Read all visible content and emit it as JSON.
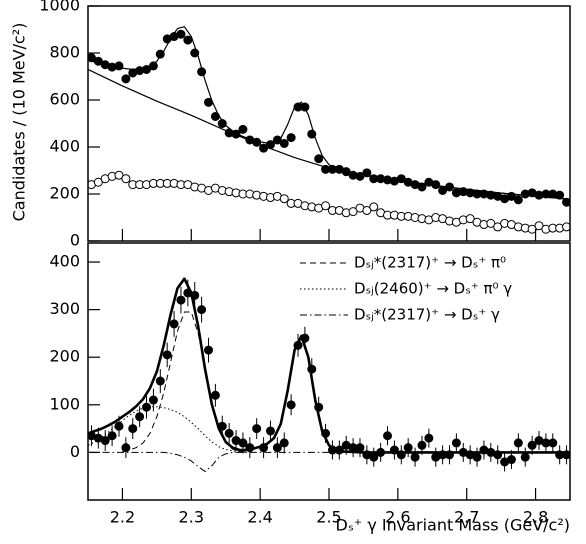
{
  "chart_data": [
    {
      "type": "scatter",
      "ylabel": "Candidates / (10 MeV/c²)",
      "xlim": [
        2.15,
        2.85
      ],
      "xticks": [
        2.2,
        2.3,
        2.4,
        2.5,
        2.6,
        2.7,
        2.8
      ],
      "show_xtick_labels": false,
      "ylim": [
        0,
        1000
      ],
      "yticks": [
        0,
        200,
        400,
        600,
        800,
        1000
      ],
      "x": [
        2.155,
        2.165,
        2.175,
        2.185,
        2.195,
        2.205,
        2.215,
        2.225,
        2.235,
        2.245,
        2.255,
        2.265,
        2.275,
        2.285,
        2.295,
        2.305,
        2.315,
        2.325,
        2.335,
        2.345,
        2.355,
        2.365,
        2.375,
        2.385,
        2.395,
        2.405,
        2.415,
        2.425,
        2.435,
        2.445,
        2.455,
        2.465,
        2.475,
        2.485,
        2.495,
        2.505,
        2.515,
        2.525,
        2.535,
        2.545,
        2.555,
        2.565,
        2.575,
        2.585,
        2.595,
        2.605,
        2.615,
        2.625,
        2.635,
        2.645,
        2.655,
        2.665,
        2.675,
        2.685,
        2.695,
        2.705,
        2.715,
        2.725,
        2.735,
        2.745,
        2.755,
        2.765,
        2.775,
        2.785,
        2.795,
        2.805,
        2.815,
        2.825,
        2.835,
        2.845
      ],
      "series": [
        {
          "mode": "markers",
          "marker": "filled",
          "color": "#000000",
          "values": [
            780,
            765,
            750,
            740,
            745,
            690,
            715,
            725,
            730,
            745,
            795,
            860,
            870,
            880,
            855,
            800,
            720,
            590,
            530,
            500,
            460,
            455,
            475,
            430,
            420,
            395,
            410,
            430,
            415,
            440,
            570,
            570,
            455,
            350,
            305,
            305,
            305,
            295,
            280,
            275,
            290,
            265,
            265,
            260,
            255,
            265,
            250,
            240,
            230,
            250,
            240,
            215,
            230,
            205,
            210,
            205,
            200,
            200,
            195,
            190,
            180,
            190,
            175,
            200,
            205,
            195,
            200,
            200,
            195,
            165
          ]
        },
        {
          "mode": "markers",
          "marker": "open",
          "color": "#000000",
          "values": [
            240,
            250,
            265,
            275,
            280,
            265,
            240,
            240,
            240,
            245,
            245,
            245,
            245,
            240,
            240,
            230,
            225,
            215,
            225,
            215,
            210,
            205,
            200,
            200,
            195,
            190,
            185,
            190,
            180,
            160,
            160,
            150,
            145,
            140,
            150,
            130,
            130,
            120,
            125,
            140,
            130,
            145,
            120,
            110,
            110,
            105,
            105,
            100,
            95,
            90,
            100,
            95,
            85,
            80,
            90,
            95,
            80,
            70,
            75,
            60,
            75,
            70,
            60,
            55,
            50,
            65,
            50,
            55,
            55,
            60
          ]
        },
        {
          "mode": "line",
          "dash": "solid",
          "width": 1.2,
          "color": "#000000",
          "x": [
            2.15,
            2.16,
            2.17,
            2.18,
            2.19,
            2.2,
            2.21,
            2.22,
            2.23,
            2.24,
            2.25,
            2.26,
            2.27,
            2.28,
            2.29,
            2.3,
            2.31,
            2.32,
            2.33,
            2.34,
            2.35,
            2.36,
            2.37,
            2.38,
            2.39,
            2.4,
            2.41,
            2.42,
            2.43,
            2.44,
            2.45,
            2.46,
            2.47,
            2.48,
            2.49,
            2.5,
            2.51,
            2.52,
            2.55,
            2.6,
            2.65,
            2.7,
            2.75,
            2.8,
            2.85
          ],
          "values": [
            770,
            761,
            752,
            745,
            739,
            735,
            732,
            731,
            733,
            743,
            765,
            808,
            861,
            904,
            912,
            870,
            787,
            684,
            596,
            533,
            492,
            468,
            451,
            439,
            430,
            422,
            417,
            418,
            437,
            496,
            570,
            591,
            537,
            438,
            364,
            325,
            309,
            300,
            280,
            258,
            238,
            220,
            204,
            190,
            178
          ]
        },
        {
          "mode": "line",
          "dash": "solid",
          "width": 1.2,
          "color": "#000000",
          "x": [
            2.15,
            2.2,
            2.25,
            2.3,
            2.35,
            2.4,
            2.45,
            2.5,
            2.55,
            2.6,
            2.65,
            2.7,
            2.75,
            2.8,
            2.85
          ],
          "values": [
            730,
            660,
            595,
            535,
            470,
            410,
            355,
            310,
            280,
            258,
            238,
            220,
            204,
            190,
            178
          ]
        }
      ]
    },
    {
      "type": "scatter",
      "xlabel": "Dₛ⁺ γ Invariant Mass (GeV/c²)",
      "xlim": [
        2.15,
        2.85
      ],
      "xticks": [
        2.2,
        2.3,
        2.4,
        2.5,
        2.6,
        2.7,
        2.8
      ],
      "show_xtick_labels": true,
      "ylim": [
        -100,
        440
      ],
      "yticks": [
        0,
        100,
        200,
        300,
        400
      ],
      "legend": "upper right",
      "x": [
        2.155,
        2.165,
        2.175,
        2.185,
        2.195,
        2.205,
        2.215,
        2.225,
        2.235,
        2.245,
        2.255,
        2.265,
        2.275,
        2.285,
        2.295,
        2.305,
        2.315,
        2.325,
        2.335,
        2.345,
        2.355,
        2.365,
        2.375,
        2.385,
        2.395,
        2.405,
        2.415,
        2.425,
        2.435,
        2.445,
        2.455,
        2.465,
        2.475,
        2.485,
        2.495,
        2.505,
        2.515,
        2.525,
        2.535,
        2.545,
        2.555,
        2.565,
        2.575,
        2.585,
        2.595,
        2.605,
        2.615,
        2.625,
        2.635,
        2.645,
        2.655,
        2.665,
        2.675,
        2.685,
        2.695,
        2.705,
        2.715,
        2.725,
        2.735,
        2.745,
        2.755,
        2.765,
        2.775,
        2.785,
        2.795,
        2.805,
        2.815,
        2.825,
        2.835,
        2.845
      ],
      "series": [
        {
          "mode": "markers",
          "marker": "filled",
          "color": "#000000",
          "values": [
            35,
            30,
            25,
            35,
            55,
            10,
            50,
            75,
            95,
            110,
            150,
            205,
            270,
            320,
            335,
            330,
            300,
            215,
            120,
            55,
            40,
            25,
            20,
            10,
            50,
            10,
            45,
            10,
            20,
            100,
            225,
            240,
            175,
            95,
            40,
            5,
            5,
            15,
            10,
            10,
            -5,
            -10,
            0,
            35,
            5,
            -5,
            10,
            -10,
            15,
            30,
            -10,
            -5,
            -5,
            20,
            0,
            -5,
            -10,
            5,
            0,
            -5,
            -20,
            -15,
            20,
            -10,
            15,
            25,
            20,
            20,
            -5,
            -5
          ],
          "errors": [
            22,
            22,
            22,
            22,
            22,
            22,
            22,
            22,
            24,
            24,
            25,
            26,
            27,
            28,
            28,
            28,
            27,
            26,
            24,
            22,
            22,
            22,
            22,
            22,
            22,
            22,
            22,
            22,
            22,
            22,
            24,
            24,
            23,
            22,
            20,
            20,
            20,
            20,
            20,
            20,
            20,
            20,
            20,
            20,
            20,
            20,
            20,
            20,
            20,
            20,
            20,
            20,
            20,
            20,
            20,
            20,
            20,
            20,
            20,
            20,
            20,
            20,
            20,
            20,
            20,
            20,
            20,
            20,
            20,
            20
          ]
        },
        {
          "mode": "line",
          "dash": "solid",
          "width": 2.6,
          "color": "#000000",
          "x": [
            2.15,
            2.16,
            2.17,
            2.18,
            2.19,
            2.2,
            2.21,
            2.22,
            2.23,
            2.24,
            2.25,
            2.26,
            2.27,
            2.28,
            2.29,
            2.3,
            2.31,
            2.32,
            2.33,
            2.34,
            2.35,
            2.36,
            2.37,
            2.38,
            2.39,
            2.4,
            2.41,
            2.42,
            2.43,
            2.44,
            2.45,
            2.46,
            2.47,
            2.48,
            2.49,
            2.5,
            2.51,
            2.52,
            2.55,
            2.85
          ],
          "values": [
            40,
            45,
            50,
            57,
            65,
            75,
            85,
            97,
            112,
            135,
            170,
            225,
            290,
            345,
            365,
            335,
            265,
            175,
            100,
            50,
            22,
            10,
            5,
            5,
            8,
            12,
            18,
            30,
            60,
            130,
            215,
            245,
            200,
            110,
            45,
            15,
            5,
            2,
            0,
            0
          ]
        },
        {
          "name": "Dₛⱼ*(2317)⁺ → Dₛ⁺ π⁰",
          "mode": "line",
          "dash": "dashed",
          "width": 1,
          "color": "#000000",
          "x": [
            2.2,
            2.21,
            2.22,
            2.23,
            2.24,
            2.25,
            2.26,
            2.27,
            2.28,
            2.29,
            2.3,
            2.31,
            2.32,
            2.33,
            2.34,
            2.35,
            2.36,
            2.37,
            2.38
          ],
          "values": [
            2,
            5,
            10,
            20,
            40,
            75,
            125,
            190,
            255,
            295,
            295,
            250,
            180,
            105,
            50,
            20,
            7,
            2,
            0
          ]
        },
        {
          "name": "Dₛⱼ(2460)⁺ → Dₛ⁺ π⁰ γ",
          "mode": "line",
          "dash": "dotted",
          "width": 1,
          "color": "#000000",
          "x": [
            2.15,
            2.16,
            2.17,
            2.18,
            2.19,
            2.2,
            2.21,
            2.22,
            2.23,
            2.24,
            2.25,
            2.26,
            2.27,
            2.28,
            2.29,
            2.3,
            2.31,
            2.32,
            2.33,
            2.34,
            2.35,
            2.36,
            2.37,
            2.38
          ],
          "values": [
            15,
            22,
            32,
            43,
            55,
            67,
            78,
            87,
            93,
            96,
            96,
            94,
            90,
            84,
            75,
            63,
            50,
            35,
            22,
            12,
            6,
            3,
            1,
            0
          ]
        },
        {
          "name": "Dₛⱼ*(2317)⁺ → Dₛ⁺ γ",
          "mode": "line",
          "dash": "dashdot",
          "width": 1,
          "color": "#000000",
          "x": [
            2.15,
            2.26,
            2.27,
            2.28,
            2.29,
            2.3,
            2.31,
            2.32,
            2.33,
            2.34,
            2.35,
            2.36,
            2.85
          ],
          "values": [
            0,
            0,
            -2,
            -5,
            -10,
            -18,
            -30,
            -40,
            -28,
            -10,
            -3,
            0,
            0
          ]
        }
      ]
    }
  ]
}
